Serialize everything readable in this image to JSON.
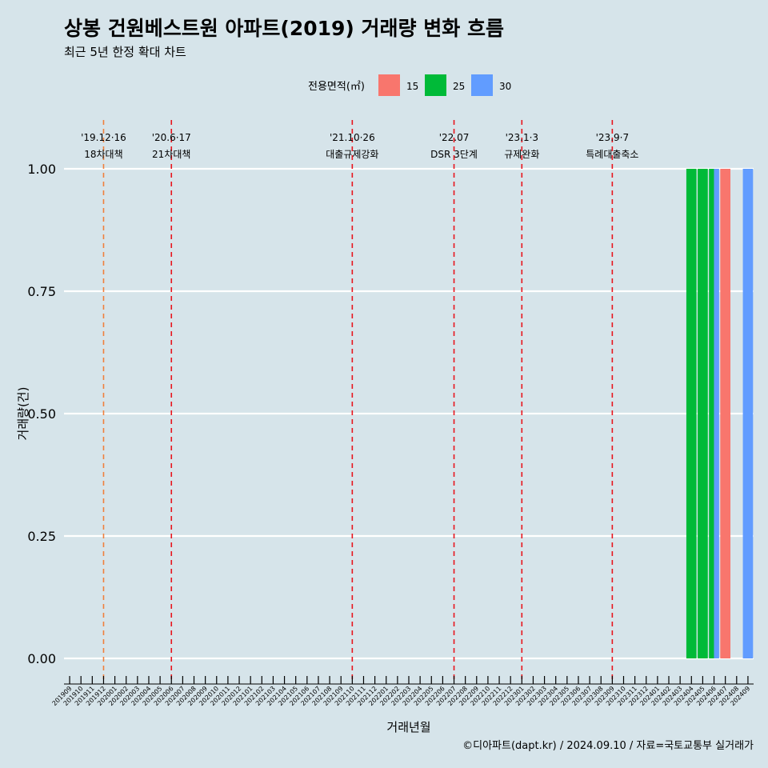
{
  "chart_data": {
    "type": "bar",
    "title": "상봉 건원베스트원 아파트(2019) 거래량 변화 흐름",
    "subtitle": "최근 5년 한정 확대 차트",
    "xlabel": "거래년월",
    "ylabel": "거래량(건)",
    "caption": "©디아파트(dapt.kr) / 2024.09.10 / 자료=국토교통부 실거래가",
    "ylim": [
      0,
      1
    ],
    "yticks": [
      0,
      0.25,
      0.5,
      0.75,
      1
    ],
    "ytick_labels": [
      "0.00",
      "0.25",
      "0.50",
      "0.75",
      "1.00"
    ],
    "legend": {
      "title": "전용면적(㎡)",
      "position": "top",
      "items": [
        {
          "label": "15",
          "color": "#f8766d"
        },
        {
          "label": "25",
          "color": "#00ba38"
        },
        {
          "label": "30",
          "color": "#619cff"
        }
      ]
    },
    "categories": [
      "201909",
      "201910",
      "201911",
      "201912",
      "202001",
      "202002",
      "202003",
      "202004",
      "202005",
      "202006",
      "202007",
      "202008",
      "202009",
      "202010",
      "202011",
      "202012",
      "202101",
      "202102",
      "202103",
      "202104",
      "202105",
      "202106",
      "202107",
      "202108",
      "202109",
      "202110",
      "202111",
      "202112",
      "202201",
      "202202",
      "202203",
      "202204",
      "202205",
      "202206",
      "202207",
      "202208",
      "202209",
      "202210",
      "202211",
      "202212",
      "202301",
      "202302",
      "202303",
      "202304",
      "202305",
      "202306",
      "202307",
      "202308",
      "202309",
      "202310",
      "202311",
      "202312",
      "202401",
      "202402",
      "202403",
      "202404",
      "202405",
      "202406",
      "202407",
      "202408",
      "202409"
    ],
    "bars": [
      {
        "month": "202404",
        "area": "25",
        "value": 1
      },
      {
        "month": "202405",
        "area": "25",
        "value": 1
      },
      {
        "month": "202406",
        "area": "25",
        "value": 1
      },
      {
        "month": "202406",
        "area": "30",
        "value": 1
      },
      {
        "month": "202407",
        "area": "15",
        "value": 1
      },
      {
        "month": "202409",
        "area": "30",
        "value": 1
      }
    ],
    "events": [
      {
        "month": "201912",
        "date": "'19.12·16",
        "label": "18차대책",
        "color": "#f07f3c"
      },
      {
        "month": "202006",
        "date": "'20.6·17",
        "label": "21차대책",
        "color": "#e8141c"
      },
      {
        "month": "202110",
        "date": "'21.10·26",
        "label": "대출규제강화",
        "color": "#e8141c"
      },
      {
        "month": "202207",
        "date": "'22.07",
        "label": "DSR 3단계",
        "color": "#e8141c"
      },
      {
        "month": "202301",
        "date": "'23.1·3",
        "label": "규제완화",
        "color": "#e8141c"
      },
      {
        "month": "202309",
        "date": "'23.9·7",
        "label": "특례대출축소",
        "color": "#e8141c"
      }
    ]
  }
}
